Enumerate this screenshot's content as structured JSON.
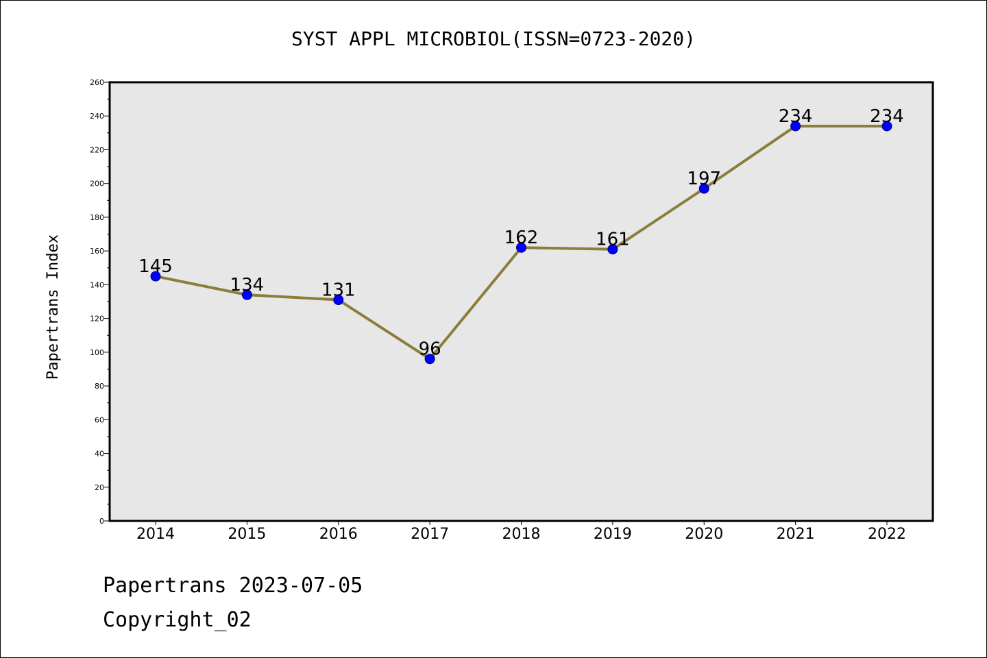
{
  "footer": {
    "source_line": "Papertrans 2023-07-05",
    "copyright": "Copyright_02"
  },
  "colors": {
    "line": "#8b7d3a",
    "marker_fill": "#0000ff",
    "marker_edge": "#000080",
    "plot_bg": "#e7e7e7",
    "axis": "#000000"
  },
  "chart_data": {
    "type": "line",
    "title": "SYST APPL MICROBIOL(ISSN=0723-2020)",
    "xlabel": "",
    "ylabel": "Papertrans Index",
    "categories": [
      "2014",
      "2015",
      "2016",
      "2017",
      "2018",
      "2019",
      "2020",
      "2021",
      "2022"
    ],
    "series": [
      {
        "values": [
          145,
          134,
          131,
          96,
          162,
          161,
          197,
          234,
          234
        ]
      }
    ],
    "data_labels": [
      "145",
      "134",
      "131",
      "96",
      "162",
      "161",
      "197",
      "234",
      "234"
    ],
    "ylim": [
      0,
      260
    ],
    "yticks": [
      "0",
      "20",
      "40",
      "60",
      "80",
      "100",
      "120",
      "140",
      "160",
      "180",
      "200",
      "220",
      "240",
      "260"
    ],
    "grid": false,
    "legend": "none"
  }
}
